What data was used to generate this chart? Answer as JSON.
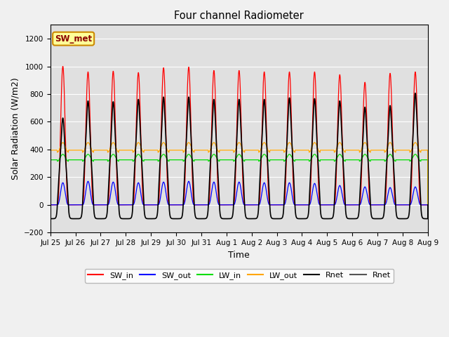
{
  "title": "Four channel Radiometer",
  "xlabel": "Time",
  "ylabel": "Solar Radiation (W/m2)",
  "ylim": [
    -200,
    1300
  ],
  "yticks": [
    -200,
    0,
    200,
    400,
    600,
    800,
    1000,
    1200
  ],
  "x_labels": [
    "Jul 25",
    "Jul 26",
    "Jul 27",
    "Jul 28",
    "Jul 29",
    "Jul 30",
    "Jul 31",
    "Aug 1",
    "Aug 2",
    "Aug 3",
    "Aug 4",
    "Aug 5",
    "Aug 6",
    "Aug 7",
    "Aug 8",
    "Aug 9"
  ],
  "n_days": 15,
  "SW_in_peak": [
    1000,
    960,
    965,
    955,
    990,
    995,
    970,
    970,
    960,
    960,
    960,
    940,
    885,
    950,
    960
  ],
  "SW_out_peak": [
    160,
    170,
    165,
    160,
    165,
    170,
    165,
    165,
    160,
    160,
    155,
    140,
    130,
    125,
    130
  ],
  "LW_in_base": 340,
  "LW_in_amplitude": 25,
  "LW_out_base": 415,
  "LW_out_amplitude": 35,
  "Rnet_peak": [
    560,
    670,
    665,
    680,
    695,
    695,
    680,
    680,
    680,
    690,
    685,
    670,
    630,
    640,
    720
  ],
  "Rnet_night": -100,
  "colors": {
    "SW_in": "#ff0000",
    "SW_out": "#0000ff",
    "LW_in": "#00dd00",
    "LW_out": "#ffa500",
    "Rnet": "#000000",
    "Rnet2": "#555555"
  },
  "fig_bg_color": "#f0f0f0",
  "plot_bg_color": "#e0e0e0",
  "annotation_text": "SW_met",
  "annotation_fg": "#8b0000",
  "annotation_bg": "#ffff99",
  "annotation_border": "#cc8800"
}
